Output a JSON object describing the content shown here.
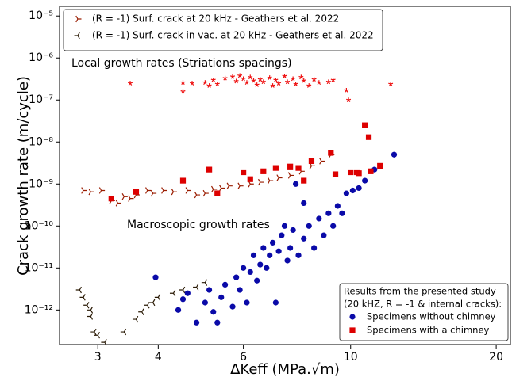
{
  "chart_data": {
    "type": "scatter",
    "xlabel": "ΔKeff (MPa.√m)",
    "ylabel": "Crack growth rate (m/cycle)",
    "xlog": true,
    "ylog": true,
    "xlim": [
      2.5,
      21.4
    ],
    "ylim": [
      1.5e-13,
      1.7e-05
    ],
    "xticks": [
      3,
      4,
      6,
      10,
      20
    ],
    "yticks": [
      {
        "value": 1e-12,
        "label": "10⁻¹²"
      },
      {
        "value": 1e-11,
        "label": "10⁻¹¹"
      },
      {
        "value": 1e-10,
        "label": "10⁻¹⁰"
      },
      {
        "value": 1e-09,
        "label": "10⁻⁹"
      },
      {
        "value": 1e-08,
        "label": "10⁻⁸"
      },
      {
        "value": 1e-07,
        "label": "10⁻⁷"
      },
      {
        "value": 1e-06,
        "label": "10⁻⁶"
      },
      {
        "value": 1e-05,
        "label": "10⁻⁵"
      }
    ],
    "legend_title": [
      "Results from the presented study",
      "(20 kHZ, R = -1 & internal cracks):"
    ],
    "annotations": [
      {
        "text": "Local growth rates (Striations spacings)",
        "color": "#ee1111"
      },
      {
        "text": "Macroscopic growth rates",
        "color": "#ee1111"
      }
    ],
    "series": [
      {
        "name": "(R = -1) Surf. crack at 20 kHz - Geathers et al. 2022",
        "legend": "upper left",
        "marker": "tri-right",
        "color": "#9a1c00",
        "x": [
          2.8,
          2.9,
          3.05,
          3.2,
          3.3,
          3.4,
          3.5,
          3.6,
          3.8,
          3.9,
          4.1,
          4.3,
          4.6,
          4.8,
          5.0,
          5.2,
          5.4,
          5.6,
          5.9,
          6.2,
          6.5,
          6.8,
          7.1,
          7.5,
          7.9,
          8.3,
          8.7,
          9.1
        ],
        "values": [
          7e-10,
          6.5e-10,
          7e-10,
          4e-10,
          3.5e-10,
          5e-10,
          4.5e-10,
          5.5e-10,
          7e-10,
          6e-10,
          7e-10,
          6.5e-10,
          7e-10,
          5.5e-10,
          6e-10,
          7.5e-10,
          8e-10,
          9e-10,
          9e-10,
          1e-09,
          1.1e-09,
          1.2e-09,
          1.4e-09,
          1.6e-09,
          2e-09,
          2.7e-09,
          3.5e-09,
          5e-09
        ]
      },
      {
        "name": "(R = -1) Surf. crack in vac. at 20 kHz - Geathers et al. 2022",
        "legend": "upper left",
        "marker": "tri-left",
        "color": "#2a1a05",
        "x": [
          2.75,
          2.8,
          2.85,
          2.9,
          2.9,
          2.95,
          3.0,
          3.1,
          3.4,
          3.6,
          3.7,
          3.8,
          3.9,
          4.0,
          4.3,
          4.5,
          4.8,
          5.0
        ],
        "values": [
          3e-12,
          2e-12,
          1.3e-12,
          1e-12,
          7e-13,
          3e-13,
          2.5e-13,
          1.7e-13,
          3e-13,
          6e-13,
          9e-13,
          1.3e-12,
          1.5e-12,
          2e-12,
          2.5e-12,
          3e-12,
          3.5e-12,
          4.5e-12
        ]
      },
      {
        "marker": "star",
        "color": "#ee1111",
        "x": [
          3.5,
          4.5,
          4.5,
          4.7,
          5.0,
          5.1,
          5.2,
          5.3,
          5.5,
          5.7,
          5.8,
          5.9,
          6.0,
          6.1,
          6.2,
          6.3,
          6.4,
          6.5,
          6.6,
          6.8,
          6.9,
          7.0,
          7.1,
          7.3,
          7.4,
          7.6,
          7.7,
          7.9,
          8.0,
          8.2,
          8.4,
          8.6,
          9.0,
          9.2,
          9.8,
          9.9,
          12.1
        ],
        "values": [
          2.5e-07,
          2.6e-07,
          1.6e-07,
          2.5e-07,
          2.6e-07,
          2.2e-07,
          3e-07,
          2.4e-07,
          3.3e-07,
          3.6e-07,
          2.8e-07,
          3.8e-07,
          3.2e-07,
          2.6e-07,
          3.5e-07,
          2.9e-07,
          2.3e-07,
          3.1e-07,
          2.7e-07,
          3.4e-07,
          2.2e-07,
          3e-07,
          2.5e-07,
          3.7e-07,
          2.7e-07,
          3.2e-07,
          2.4e-07,
          3.5e-07,
          2.9e-07,
          2.2e-07,
          3.1e-07,
          2.6e-07,
          2.7e-07,
          3e-07,
          1.7e-07,
          1e-07,
          2.4e-07
        ]
      },
      {
        "name": "Specimens without chimney",
        "legend": "lower right",
        "marker": "circle",
        "color": "#0a0aa8",
        "label_color": "#1515d0",
        "x": [
          3.95,
          4.4,
          4.5,
          4.6,
          4.8,
          5.0,
          5.1,
          5.2,
          5.3,
          5.4,
          5.5,
          5.7,
          5.8,
          5.9,
          6.0,
          6.1,
          6.2,
          6.3,
          6.4,
          6.5,
          6.6,
          6.7,
          6.8,
          6.9,
          7.0,
          7.1,
          7.2,
          7.4,
          7.5,
          7.6,
          7.8,
          8.0,
          8.2,
          8.4,
          8.6,
          8.8,
          9.0,
          9.2,
          9.4,
          9.6,
          9.8,
          10.1,
          10.4,
          10.7,
          11.2,
          12.3,
          7.7,
          8.0,
          7.3
        ],
        "values": [
          6e-12,
          1e-12,
          1.8e-12,
          2.5e-12,
          5e-13,
          1.5e-12,
          3e-12,
          9e-13,
          5e-13,
          2e-12,
          4e-12,
          1.2e-12,
          6e-12,
          3e-12,
          1e-11,
          1.5e-12,
          8e-12,
          2e-11,
          5e-12,
          1.2e-11,
          3e-11,
          1e-11,
          2e-11,
          4e-11,
          1.5e-12,
          2.5e-11,
          6e-11,
          1.5e-11,
          3e-11,
          8e-11,
          2e-11,
          5e-11,
          1e-10,
          3e-11,
          1.5e-10,
          6e-11,
          2e-10,
          1e-10,
          3e-10,
          2e-10,
          6e-10,
          7e-10,
          8e-10,
          1.2e-09,
          2.2e-09,
          5e-09,
          1e-09,
          3.5e-10,
          1e-10
        ]
      },
      {
        "name": "Specimens with a chimney",
        "legend": "lower right",
        "marker": "square",
        "color": "#dd0000",
        "label_color": "#ee1111",
        "x": [
          3.2,
          3.6,
          4.5,
          5.1,
          5.3,
          6.0,
          6.2,
          6.6,
          7.0,
          7.5,
          7.8,
          8.0,
          8.3,
          9.1,
          9.3,
          10.0,
          10.3,
          10.7,
          10.9,
          11.0,
          11.5,
          10.4
        ],
        "values": [
          4.5e-10,
          6.5e-10,
          1.2e-09,
          2.2e-09,
          6e-10,
          1.9e-09,
          1.3e-09,
          2e-09,
          2.4e-09,
          2.6e-09,
          2.4e-09,
          1.2e-09,
          3.5e-09,
          5.5e-09,
          1.7e-09,
          1.9e-09,
          1.9e-09,
          2.5e-08,
          1.3e-08,
          2e-09,
          2.7e-09,
          1.8e-09
        ]
      }
    ]
  }
}
